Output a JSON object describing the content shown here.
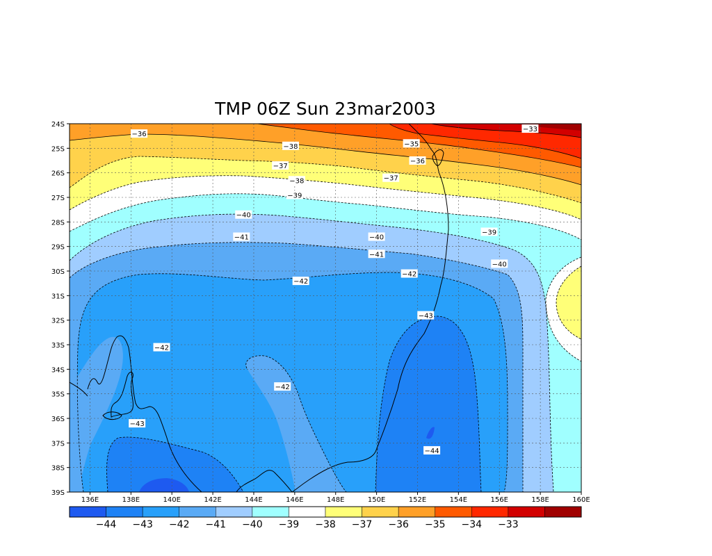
{
  "chart_data": {
    "type": "heatmap",
    "title": "TMP 06Z Sun 23mar2003",
    "x_ticks": [
      "136E",
      "138E",
      "140E",
      "142E",
      "144E",
      "146E",
      "148E",
      "150E",
      "152E",
      "154E",
      "156E",
      "158E",
      "160E"
    ],
    "y_ticks": [
      "24S",
      "25S",
      "26S",
      "27S",
      "28S",
      "29S",
      "30S",
      "31S",
      "32S",
      "33S",
      "34S",
      "35S",
      "36S",
      "37S",
      "38S",
      "39S"
    ],
    "xlim": [
      135,
      160
    ],
    "ylim": [
      -39,
      -24
    ],
    "grid": true,
    "contour_levels": [
      -44,
      -43,
      -42,
      -41,
      -40,
      -39,
      -38,
      -37,
      -36,
      -35,
      -34,
      -33
    ],
    "colorbar_labels": [
      "-44",
      "-43",
      "-42",
      "-41",
      "-40",
      "-39",
      "-38",
      "-37",
      "-36",
      "-35",
      "-34",
      "-33"
    ],
    "colorbar_colors": [
      "#1e5af0",
      "#1e82f5",
      "#28a0fa",
      "#5aaaf5",
      "#a0cdff",
      "#a0ffff",
      "#ffffff",
      "#ffff78",
      "#ffd24b",
      "#ffa028",
      "#ff5a00",
      "#ff2800",
      "#d20000",
      "#a00000"
    ],
    "contour_labels": [
      {
        "text": "-36",
        "lon": 138.4,
        "lat": -24.4
      },
      {
        "text": "-38",
        "lon": 145.8,
        "lat": -24.9
      },
      {
        "text": "-35",
        "lon": 151.7,
        "lat": -24.8
      },
      {
        "text": "-33",
        "lon": 157.5,
        "lat": -24.2
      },
      {
        "text": "-36",
        "lon": 152.0,
        "lat": -25.5
      },
      {
        "text": "-37",
        "lon": 145.3,
        "lat": -25.7
      },
      {
        "text": "-37",
        "lon": 150.7,
        "lat": -26.2
      },
      {
        "text": "-38",
        "lon": 146.1,
        "lat": -26.3
      },
      {
        "text": "-39",
        "lon": 146.0,
        "lat": -26.9
      },
      {
        "text": "-40",
        "lon": 143.5,
        "lat": -27.7
      },
      {
        "text": "-40",
        "lon": 150.0,
        "lat": -28.6
      },
      {
        "text": "-39",
        "lon": 155.5,
        "lat": -28.4
      },
      {
        "text": "-41",
        "lon": 143.4,
        "lat": -28.6
      },
      {
        "text": "-41",
        "lon": 150.0,
        "lat": -29.3
      },
      {
        "text": "-40",
        "lon": 156.0,
        "lat": -29.7
      },
      {
        "text": "-42",
        "lon": 146.3,
        "lat": -30.4
      },
      {
        "text": "-42",
        "lon": 151.6,
        "lat": -30.1
      },
      {
        "text": "-43",
        "lon": 152.4,
        "lat": -31.8
      },
      {
        "text": "-42",
        "lon": 139.5,
        "lat": -33.1
      },
      {
        "text": "-42",
        "lon": 145.4,
        "lat": -34.7
      },
      {
        "text": "-43",
        "lon": 138.3,
        "lat": -36.2
      },
      {
        "text": "-44",
        "lon": 152.7,
        "lat": -37.3
      }
    ]
  }
}
